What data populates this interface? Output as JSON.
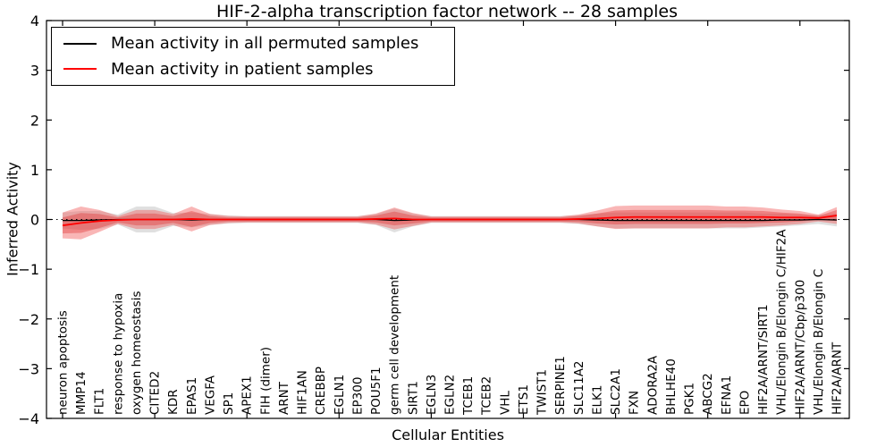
{
  "chart_data": {
    "type": "line",
    "title": "HIF-2-alpha transcription factor network -- 28 samples",
    "xlabel": "Cellular Entities",
    "ylabel": "Inferred Activity",
    "ylim": [
      -4,
      4
    ],
    "yticks": [
      -4,
      -3,
      -2,
      -1,
      0,
      1,
      2,
      3,
      4
    ],
    "grid": false,
    "x_tick_label_rotation": 90,
    "legend": {
      "position": "upper left",
      "entries": [
        {
          "label": "Mean activity in all permuted samples",
          "color": "#000000"
        },
        {
          "label": "Mean activity in patient samples",
          "color": "#ff0000"
        }
      ]
    },
    "categories": [
      "neuron apoptosis",
      "MMP14",
      "FLT1",
      "response to hypoxia",
      "oxygen homeostasis",
      "CITED2",
      "KDR",
      "EPAS1",
      "VEGFA",
      "SP1",
      "APEX1",
      "FIH (dimer)",
      "ARNT",
      "HIF1AN",
      "CREBBP",
      "EGLN1",
      "EP300",
      "POU5F1",
      "germ cell development",
      "SIRT1",
      "EGLN3",
      "EGLN2",
      "TCEB1",
      "TCEB2",
      "VHL",
      "ETS1",
      "TWIST1",
      "SERPINE1",
      "SLC11A2",
      "ELK1",
      "SLC2A1",
      "FXN",
      "ADORA2A",
      "BHLHE40",
      "PGK1",
      "ABCG2",
      "EFNA1",
      "EPO",
      "HIF2A/ARNT/SIRT1",
      "VHL/Elongin B/Elongin C/HIF2A",
      "HIF2A/ARNT/Cbp/p300",
      "VHL/Elongin B/Elongin C",
      "HIF2A/ARNT"
    ],
    "series": [
      {
        "name": "Mean activity in all permuted samples",
        "color": "#000000",
        "line_width": 1.3,
        "values": [
          -0.02,
          -0.02,
          -0.01,
          0,
          0,
          0,
          0,
          -0.01,
          0,
          0,
          0,
          0,
          0,
          0,
          0,
          0,
          0,
          0,
          -0.02,
          -0.01,
          0,
          0,
          0,
          0,
          0,
          0,
          0,
          0,
          0,
          -0.01,
          -0.02,
          -0.02,
          -0.02,
          -0.02,
          -0.02,
          -0.02,
          -0.02,
          -0.02,
          -0.02,
          -0.01,
          -0.01,
          0,
          -0.01
        ]
      },
      {
        "name": "Mean activity in patient samples",
        "color": "#ff0000",
        "line_width": 1.8,
        "values": [
          -0.12,
          -0.07,
          -0.03,
          -0.01,
          0,
          0,
          0,
          0.01,
          0,
          0,
          0,
          0,
          0,
          0,
          0,
          0,
          0,
          0.01,
          0.02,
          0,
          0,
          0,
          0,
          0,
          0,
          0,
          0,
          0,
          0.01,
          0.02,
          0.04,
          0.05,
          0.05,
          0.05,
          0.05,
          0.05,
          0.05,
          0.05,
          0.05,
          0.04,
          0.04,
          0.03,
          0.08
        ]
      }
    ],
    "bands": [
      {
        "name": "permuted-samples-std-band",
        "color": "#bbbbbb",
        "opacity": 0.45,
        "center_series": 0,
        "half_widths": [
          0.16,
          0.19,
          0.18,
          0.1,
          0.26,
          0.26,
          0.13,
          0.15,
          0.11,
          0.08,
          0.07,
          0.07,
          0.07,
          0.07,
          0.07,
          0.07,
          0.07,
          0.11,
          0.24,
          0.13,
          0.07,
          0.07,
          0.07,
          0.07,
          0.07,
          0.07,
          0.07,
          0.07,
          0.09,
          0.13,
          0.16,
          0.16,
          0.16,
          0.16,
          0.16,
          0.16,
          0.16,
          0.16,
          0.14,
          0.13,
          0.11,
          0.09,
          0.13
        ]
      },
      {
        "name": "patient-samples-std-band-outer",
        "color": "#f05050",
        "opacity": 0.42,
        "center_series": 1,
        "half_widths": [
          0.26,
          0.33,
          0.22,
          0.08,
          0.19,
          0.19,
          0.11,
          0.25,
          0.11,
          0.07,
          0.06,
          0.06,
          0.06,
          0.06,
          0.06,
          0.06,
          0.06,
          0.11,
          0.22,
          0.13,
          0.06,
          0.06,
          0.06,
          0.06,
          0.06,
          0.06,
          0.06,
          0.06,
          0.09,
          0.16,
          0.23,
          0.23,
          0.23,
          0.23,
          0.23,
          0.23,
          0.21,
          0.21,
          0.19,
          0.16,
          0.13,
          0.07,
          0.17
        ]
      },
      {
        "name": "patient-samples-std-band-inner",
        "color": "#e03030",
        "opacity": 0.38,
        "center_series": 1,
        "half_widths": [
          0.16,
          0.2,
          0.14,
          0.05,
          0.12,
          0.12,
          0.07,
          0.16,
          0.07,
          0.04,
          0.04,
          0.04,
          0.04,
          0.04,
          0.04,
          0.04,
          0.04,
          0.07,
          0.14,
          0.08,
          0.04,
          0.04,
          0.04,
          0.04,
          0.04,
          0.04,
          0.04,
          0.04,
          0.06,
          0.1,
          0.14,
          0.14,
          0.14,
          0.14,
          0.14,
          0.14,
          0.13,
          0.13,
          0.12,
          0.1,
          0.08,
          0.04,
          0.11
        ]
      }
    ],
    "zero_line": {
      "value": 0,
      "style": "dotted",
      "color": "#000000"
    }
  }
}
